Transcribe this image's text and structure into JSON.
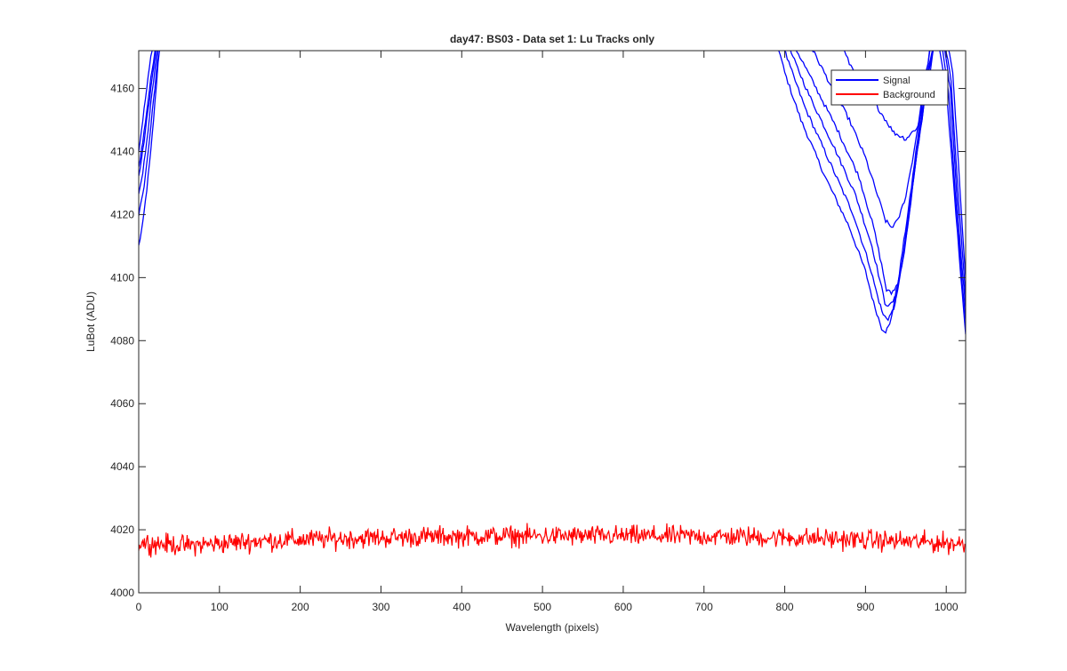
{
  "chart_data": {
    "type": "line",
    "title": "day47: BS03 - Data set 1: Lu Tracks only",
    "xlabel": "Wavelength (pixels)",
    "ylabel": "LuBot (ADU)",
    "xlim": [
      0,
      1024
    ],
    "ylim": [
      4000,
      4172
    ],
    "x_ticks": [
      0,
      100,
      200,
      300,
      400,
      500,
      600,
      700,
      800,
      900,
      1000
    ],
    "y_ticks": [
      4000,
      4020,
      4040,
      4060,
      4080,
      4100,
      4120,
      4140,
      4160
    ],
    "grid": false,
    "legend_position": "top-right",
    "legend": [
      {
        "label": "Signal",
        "color": "#0000ff"
      },
      {
        "label": "Background",
        "color": "#ff0000"
      }
    ],
    "signal_series_description": "six noisy blue traces; rise steeply from ~4110-4140 at x=0 and leave the top of the plot by x~25; re-enter at x~790-860, descend to minima near x~920 and climb out again at x~990",
    "signal_series": [
      {
        "x": [
          0,
          5,
          10,
          15,
          20,
          24,
          28
        ],
        "y": [
          4110,
          4117,
          4128,
          4140,
          4155,
          4168,
          4178
        ]
      },
      {
        "x": [
          0,
          5,
          10,
          15,
          20,
          24,
          28
        ],
        "y": [
          4120,
          4126,
          4136,
          4148,
          4160,
          4172,
          4180
        ]
      },
      {
        "x": [
          0,
          5,
          10,
          15,
          20,
          24,
          28
        ],
        "y": [
          4127,
          4133,
          4143,
          4155,
          4166,
          4176,
          4182
        ]
      },
      {
        "x": [
          0,
          5,
          10,
          15,
          20,
          24,
          28
        ],
        "y": [
          4135,
          4143,
          4153,
          4163,
          4172,
          4180,
          4185
        ]
      },
      {
        "x": [
          0,
          5,
          10,
          15,
          20,
          24
        ],
        "y": [
          4140,
          4150,
          4160,
          4170,
          4178,
          4185
        ]
      },
      {
        "x": [
          0,
          5,
          10,
          15,
          20,
          24
        ],
        "y": [
          4132,
          4140,
          4150,
          4160,
          4170,
          4180
        ]
      },
      {
        "x": [
          785,
          800,
          820,
          850,
          880,
          900,
          910,
          920,
          925,
          930,
          940,
          955,
          970,
          985,
          1000,
          1012,
          1024
        ],
        "y": [
          4180,
          4165,
          4150,
          4132,
          4116,
          4102,
          4092,
          4084,
          4083,
          4085,
          4098,
          4125,
          4155,
          4182,
          4160,
          4120,
          4082
        ]
      },
      {
        "x": [
          790,
          805,
          825,
          855,
          885,
          905,
          915,
          922,
          928,
          935,
          945,
          960,
          975,
          990,
          1003,
          1014,
          1024
        ],
        "y": [
          4180,
          4168,
          4154,
          4137,
          4120,
          4104,
          4094,
          4088,
          4087,
          4090,
          4104,
          4132,
          4162,
          4182,
          4158,
          4116,
          4086
        ]
      },
      {
        "x": [
          795,
          810,
          830,
          860,
          888,
          908,
          918,
          924,
          930,
          938,
          948,
          962,
          978,
          992,
          1005,
          1015,
          1024
        ],
        "y": [
          4180,
          4170,
          4158,
          4142,
          4126,
          4110,
          4099,
          4092,
          4091,
          4094,
          4108,
          4136,
          4165,
          4182,
          4160,
          4118,
          4090
        ]
      },
      {
        "x": [
          800,
          815,
          835,
          865,
          892,
          910,
          920,
          926,
          932,
          940,
          950,
          964,
          980,
          994,
          1006,
          1016,
          1024
        ],
        "y": [
          4180,
          4172,
          4162,
          4147,
          4132,
          4116,
          4104,
          4096,
          4095,
          4098,
          4112,
          4140,
          4168,
          4182,
          4162,
          4122,
          4094
        ]
      },
      {
        "x": [
          820,
          835,
          855,
          880,
          900,
          915,
          925,
          932,
          940,
          950,
          960,
          972,
          985,
          996,
          1008,
          1017,
          1024
        ],
        "y": [
          4180,
          4172,
          4162,
          4150,
          4138,
          4126,
          4118,
          4116,
          4118,
          4126,
          4140,
          4160,
          4180,
          4182,
          4165,
          4128,
          4100
        ]
      },
      {
        "x": [
          860,
          880,
          900,
          920,
          935,
          950,
          965,
          978,
          990
        ],
        "y": [
          4180,
          4168,
          4160,
          4152,
          4146,
          4144,
          4148,
          4162,
          4182
        ]
      }
    ],
    "background_series": {
      "mean_curve_x": [
        0,
        60,
        150,
        250,
        350,
        450,
        550,
        650,
        750,
        850,
        950,
        1024
      ],
      "mean_curve_y": [
        4016,
        4015,
        4016.5,
        4017.2,
        4017.8,
        4018,
        4018,
        4018,
        4017.8,
        4017.2,
        4016.3,
        4015.5
      ],
      "noise_amplitude": 1.6
    }
  }
}
